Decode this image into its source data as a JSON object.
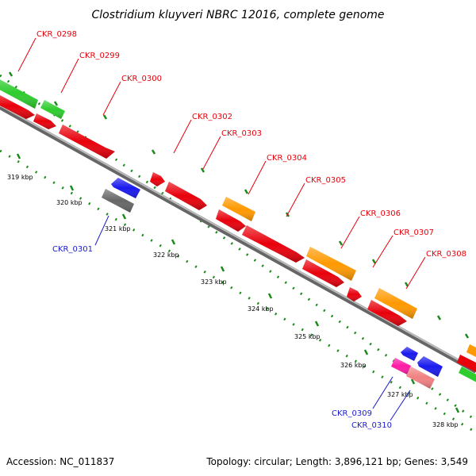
{
  "title": "Clostridium kluyveri NBRC 12016, complete genome",
  "footer": {
    "accession": "Accession: NC_011837",
    "summary": "Topology: circular; Length: 3,896,121 bp; Genes: 3,549"
  },
  "colors": {
    "forward_label": "#e8000b",
    "reverse_label": "#1a1acc",
    "backbone": "#7a7a7a",
    "tick": "#1a8a1a"
  },
  "ticks": [
    "319 kbp",
    "320 kbp",
    "321 kbp",
    "322 kbp",
    "323 kbp",
    "324 kbp",
    "325 kbp",
    "326 kbp",
    "327 kbp",
    "328 kbp"
  ],
  "genes": [
    {
      "id": "CKR_0298",
      "strand": "forward",
      "colors": [
        "#e8000b",
        "#2ecc2e"
      ]
    },
    {
      "id": "CKR_0299",
      "strand": "forward",
      "colors": [
        "#e8000b",
        "#2ecc2e"
      ]
    },
    {
      "id": "CKR_0300",
      "strand": "forward",
      "colors": [
        "#e8000b"
      ]
    },
    {
      "id": "CKR_0301",
      "strand": "reverse",
      "colors": [
        "#1a1aee",
        "#666666"
      ]
    },
    {
      "id": "CKR_0302",
      "strand": "forward",
      "colors": [
        "#e8000b"
      ]
    },
    {
      "id": "CKR_0303",
      "strand": "forward",
      "colors": [
        "#e8000b"
      ]
    },
    {
      "id": "CKR_0304",
      "strand": "forward",
      "colors": [
        "#e8000b",
        "#ff9900"
      ]
    },
    {
      "id": "CKR_0305",
      "strand": "forward",
      "colors": [
        "#e8000b"
      ]
    },
    {
      "id": "CKR_0306",
      "strand": "forward",
      "colors": [
        "#e8000b",
        "#ff9900"
      ]
    },
    {
      "id": "CKR_0307",
      "strand": "forward",
      "colors": [
        "#e8000b"
      ]
    },
    {
      "id": "CKR_0308",
      "strand": "forward",
      "colors": [
        "#e8000b",
        "#ff9900"
      ]
    },
    {
      "id": "CKR_0309",
      "strand": "reverse",
      "colors": [
        "#ff1aa6"
      ]
    },
    {
      "id": "CKR_0310",
      "strand": "reverse",
      "colors": [
        "#1a1aee",
        "#f08080"
      ]
    }
  ]
}
